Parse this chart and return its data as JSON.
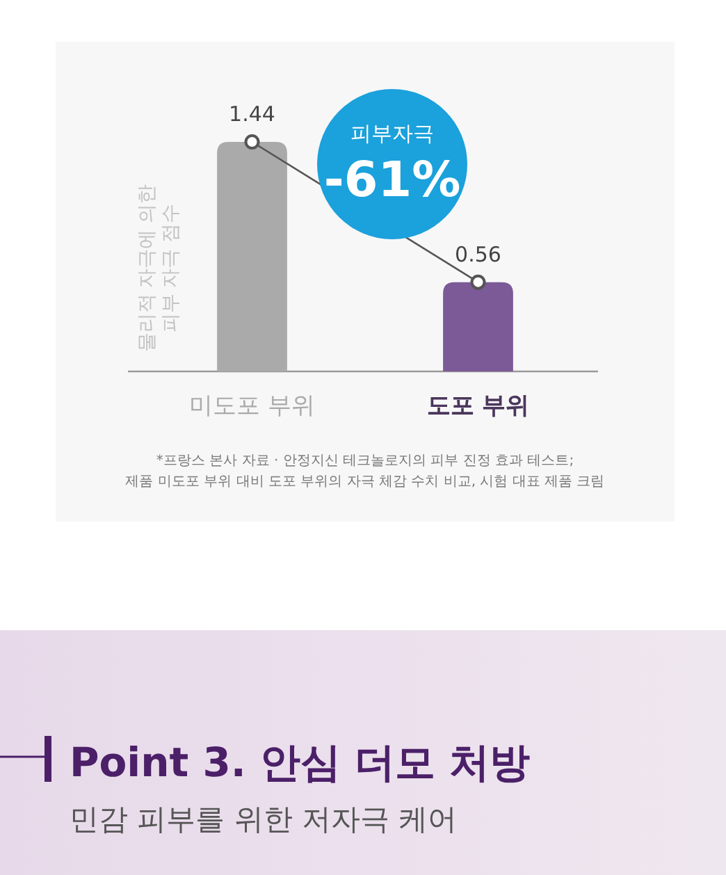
{
  "chart_data": [
    {
      "type": "bar",
      "categories": [
        "미도포 부위",
        "도포 부위"
      ],
      "ylabel": "물리적 자극에 의한 피부 자극 점수",
      "series": [
        {
          "type": "bar",
          "colors": [
            "#aaaaaa",
            "#7b5a97"
          ],
          "values": [
            1.44,
            0.56
          ]
        },
        {
          "type": "line",
          "color": "#555555",
          "values": [
            1.44,
            0.56
          ],
          "value_labels": [
            "1.44",
            "0.56"
          ]
        }
      ],
      "tick_labels": "x",
      "marker": "circle",
      "annotations": [
        "피부자극 -61%",
        "*프랑스 본사 자료 · 안정지신 테크놀로지의 피부 진정 효과 테스트;",
        "제품 미도포 부위 대비 도포 부위의 자극 체감 수치 비교, 시험 대표 제품 크림"
      ]
    },
    {
      "type": "other",
      "title": "Point 3. 안심 더모 처방",
      "subtitle": "민감 피부를 위한 저자극 케어"
    }
  ]
}
